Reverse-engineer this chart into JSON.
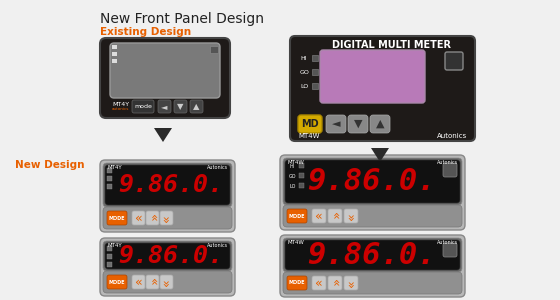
{
  "title": "New Front Panel Design",
  "existing_label": "Existing Design",
  "new_label": "New Design",
  "display_text": "9.86.0.",
  "brand": "Autonics",
  "model_y": "MT4Y",
  "model_w": "MT4W",
  "bg_color": "#f0f0f0",
  "display_red": "#cc0000",
  "orange": "#e86000",
  "purple_display": "#b87ab8",
  "md_yellow": "#d4aa00",
  "dark_panel": "#1e1a18",
  "gray_panel": "#b0b0b0",
  "dark_gray": "#666666",
  "light_gray": "#cccccc",
  "med_gray": "#909090",
  "btn_strip": "#888888",
  "btn_light": "#bbbbbb"
}
